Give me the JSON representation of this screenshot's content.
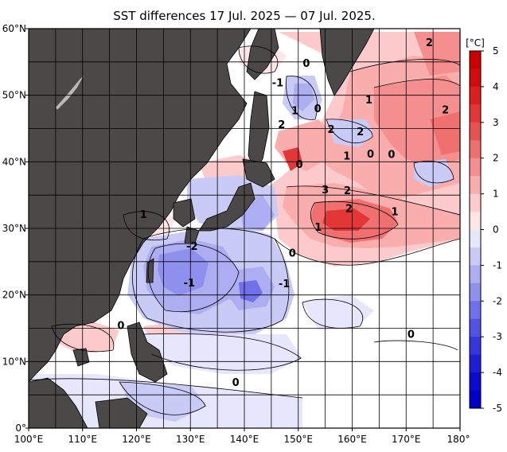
{
  "title": "SST differences 17 Jul. 2025 — 07 Jul. 2025.",
  "map": {
    "lon_range": [
      100,
      180
    ],
    "lat_range": [
      0,
      60
    ],
    "lon_ticks": [
      "100°E",
      "110°E",
      "120°E",
      "130°E",
      "140°E",
      "150°E",
      "160°E",
      "170°E",
      "180°"
    ],
    "lat_ticks": [
      "0°",
      "10°N",
      "20°N",
      "30°N",
      "40°N",
      "50°N",
      "60°N"
    ],
    "land_color": "#4b4848",
    "grid_color": "#000000"
  },
  "colorbar": {
    "unit": "[°C]",
    "ticks": [
      "5",
      "4",
      "3",
      "2",
      "1",
      "0",
      "-1",
      "-2",
      "-3",
      "-4",
      "-5"
    ],
    "range": [
      -5,
      5
    ],
    "colors_warm": [
      "#ffe6e6",
      "#fccaca",
      "#f9adad",
      "#f58f8f",
      "#f07070",
      "#ea5252",
      "#e33636",
      "#dc1e1e",
      "#d50b0b",
      "#cc0000"
    ],
    "colors_cold": [
      "#e6e6fc",
      "#cacaf7",
      "#adadf2",
      "#8f8fee",
      "#7070ea",
      "#5252e4",
      "#3636dd",
      "#1e1ed6",
      "#0b0bcf",
      "#0000c8"
    ]
  },
  "contour_labels": [
    {
      "text": "0",
      "lon": 151.5,
      "lat": 54.5
    },
    {
      "text": "-1",
      "lon": 146.2,
      "lat": 51.6
    },
    {
      "text": "0",
      "lon": 153.6,
      "lat": 47.7
    },
    {
      "text": "1",
      "lon": 149.4,
      "lat": 47.4
    },
    {
      "text": "2",
      "lon": 146.9,
      "lat": 45.3
    },
    {
      "text": "2",
      "lon": 156.1,
      "lat": 44.6
    },
    {
      "text": "1",
      "lon": 163.1,
      "lat": 49.0
    },
    {
      "text": "2",
      "lon": 174.3,
      "lat": 57.6
    },
    {
      "text": "2",
      "lon": 177.3,
      "lat": 47.5
    },
    {
      "text": "2",
      "lon": 161.5,
      "lat": 44.2
    },
    {
      "text": "1",
      "lon": 159.0,
      "lat": 40.6
    },
    {
      "text": "0",
      "lon": 163.4,
      "lat": 40.9
    },
    {
      "text": "0",
      "lon": 167.3,
      "lat": 40.8
    },
    {
      "text": "0",
      "lon": 150.2,
      "lat": 39.3
    },
    {
      "text": "3",
      "lon": 155.0,
      "lat": 35.5
    },
    {
      "text": "2",
      "lon": 159.1,
      "lat": 35.4
    },
    {
      "text": "2",
      "lon": 159.4,
      "lat": 32.7
    },
    {
      "text": "1",
      "lon": 167.9,
      "lat": 32.2
    },
    {
      "text": "1",
      "lon": 153.7,
      "lat": 29.9
    },
    {
      "text": "1",
      "lon": 121.3,
      "lat": 31.8
    },
    {
      "text": "-2",
      "lon": 130.3,
      "lat": 27.0
    },
    {
      "text": "0",
      "lon": 148.9,
      "lat": 26.0
    },
    {
      "text": "-1",
      "lon": 129.8,
      "lat": 21.5
    },
    {
      "text": "-1",
      "lon": 147.4,
      "lat": 21.4
    },
    {
      "text": "0",
      "lon": 117.1,
      "lat": 15.1
    },
    {
      "text": "0",
      "lon": 170.9,
      "lat": 13.8
    },
    {
      "text": "0",
      "lon": 138.4,
      "lat": 6.6
    }
  ]
}
